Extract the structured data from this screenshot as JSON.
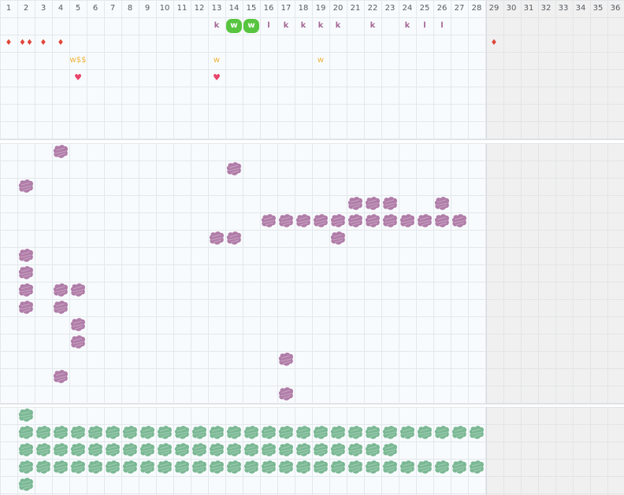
{
  "columns": [
    "1",
    "2",
    "3",
    "4",
    "5",
    "6",
    "7",
    "8",
    "9",
    "10",
    "11",
    "12",
    "13",
    "14",
    "15",
    "16",
    "17",
    "18",
    "19",
    "20",
    "21",
    "22",
    "23",
    "24",
    "25",
    "26",
    "27",
    "28",
    "29",
    "30",
    "31",
    "32",
    "33",
    "34",
    "35",
    "36"
  ],
  "active_columns": 28,
  "colors": {
    "grid_line": "#e3e8ec",
    "grid_bg": "#f8fbfd",
    "inactive_bg": "#f0f0f0",
    "purple_blob": "#b07ca8",
    "green_blob": "#7ab894",
    "green_badge": "#57c53f",
    "k_letter": "#a56a96",
    "w_letter": "#f0b23a",
    "drop": "#e0473a",
    "heart": "#e8436a"
  },
  "icons": {
    "drop": "water-drop-icon",
    "double_drop": "double-water-drop-icon",
    "heart": "heart-icon",
    "purple_blob": "purple-scribble",
    "green_blob": "green-scribble"
  },
  "top_section": {
    "row1": [
      {
        "col": 13,
        "text": "k",
        "kind": "k"
      },
      {
        "col": 14,
        "text": "w",
        "kind": "badge"
      },
      {
        "col": 15,
        "text": "w",
        "kind": "badge"
      },
      {
        "col": 16,
        "text": "l",
        "kind": "l"
      },
      {
        "col": 17,
        "text": "k",
        "kind": "k"
      },
      {
        "col": 18,
        "text": "k",
        "kind": "k"
      },
      {
        "col": 19,
        "text": "k",
        "kind": "k"
      },
      {
        "col": 20,
        "text": "k",
        "kind": "k"
      },
      {
        "col": 22,
        "text": "k",
        "kind": "k"
      },
      {
        "col": 24,
        "text": "k",
        "kind": "k"
      },
      {
        "col": 25,
        "text": "l",
        "kind": "l"
      },
      {
        "col": 26,
        "text": "l",
        "kind": "l"
      }
    ],
    "row2": [
      {
        "col": 1,
        "text": "♦",
        "kind": "drop"
      },
      {
        "col": 2,
        "text": "♦♦",
        "kind": "drop"
      },
      {
        "col": 3,
        "text": "♦",
        "kind": "drop"
      },
      {
        "col": 4,
        "text": "♦",
        "kind": "drop"
      },
      {
        "col": 29,
        "text": "♦",
        "kind": "drop"
      }
    ],
    "row3": [
      {
        "col": 5,
        "text": "w$$",
        "kind": "ws"
      },
      {
        "col": 13,
        "text": "w",
        "kind": "w"
      },
      {
        "col": 19,
        "text": "w",
        "kind": "w"
      }
    ],
    "row4": [
      {
        "col": 5,
        "text": "♥",
        "kind": "heart"
      },
      {
        "col": 13,
        "text": "♥",
        "kind": "heart"
      }
    ]
  },
  "purple_section": {
    "blobs": [
      [
        0,
        4
      ],
      [
        1,
        14
      ],
      [
        2,
        2
      ],
      [
        3,
        21
      ],
      [
        3,
        22
      ],
      [
        3,
        23
      ],
      [
        3,
        26
      ],
      [
        4,
        16
      ],
      [
        4,
        17
      ],
      [
        4,
        18
      ],
      [
        4,
        19
      ],
      [
        4,
        20
      ],
      [
        4,
        21
      ],
      [
        4,
        22
      ],
      [
        4,
        23
      ],
      [
        4,
        24
      ],
      [
        4,
        25
      ],
      [
        4,
        26
      ],
      [
        4,
        27
      ],
      [
        5,
        13
      ],
      [
        5,
        14
      ],
      [
        5,
        20
      ],
      [
        6,
        2
      ],
      [
        7,
        2
      ],
      [
        8,
        2
      ],
      [
        8,
        4
      ],
      [
        8,
        5
      ],
      [
        9,
        2
      ],
      [
        9,
        4
      ],
      [
        10,
        5
      ],
      [
        11,
        5
      ],
      [
        12,
        17
      ],
      [
        13,
        4
      ],
      [
        14,
        17
      ]
    ]
  },
  "green_section": {
    "rows": [
      {
        "start": 2,
        "end": 2
      },
      {
        "start": 2,
        "end": 28
      },
      {
        "start": 2,
        "end": 23
      },
      {
        "start": 2,
        "end": 28
      },
      {
        "start": 2,
        "end": 2
      }
    ]
  }
}
